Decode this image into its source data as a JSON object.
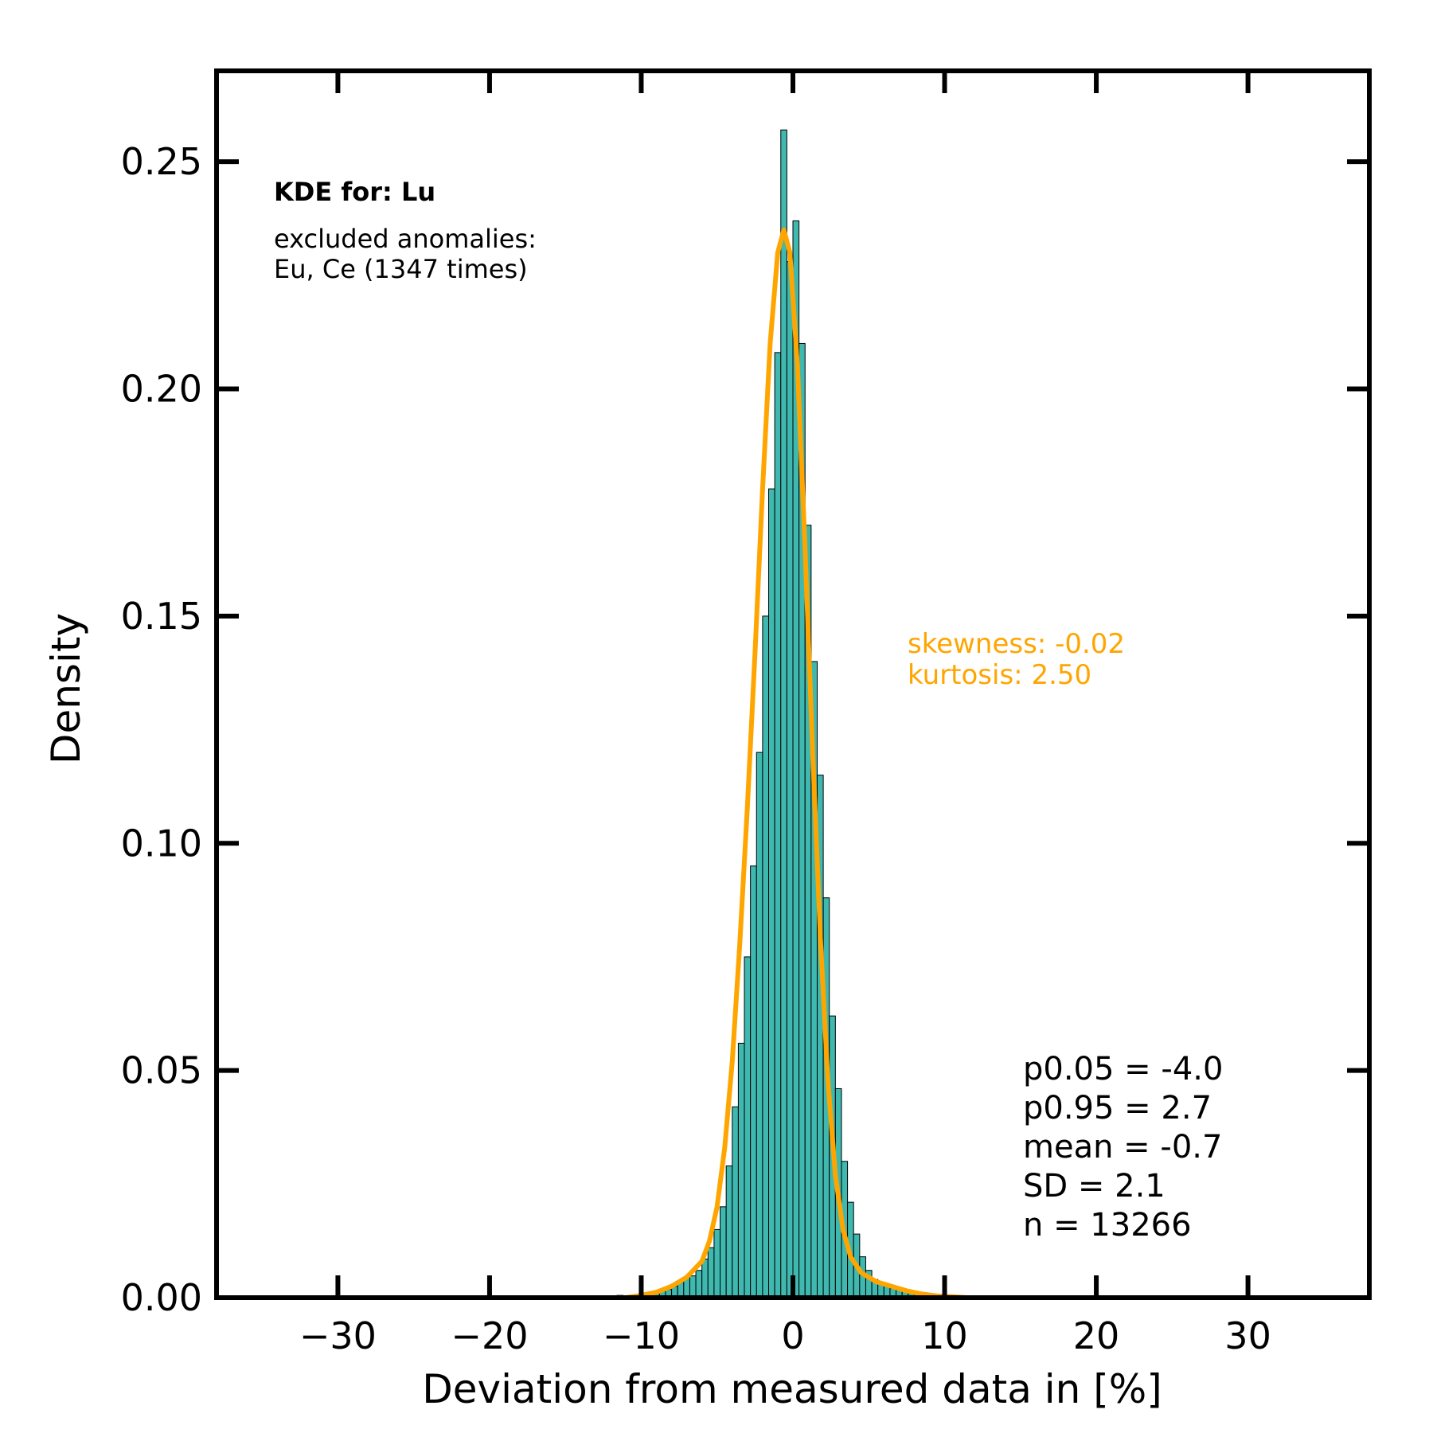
{
  "chart_data": {
    "type": "bar",
    "title": "",
    "xlabel": "Deviation from measured data in [%]",
    "ylabel": "Density",
    "xlim": [
      -38,
      38
    ],
    "ylim": [
      0,
      0.27
    ],
    "xticks": [
      -30,
      -20,
      -10,
      0,
      10,
      20,
      30
    ],
    "xtick_labels": [
      "−30",
      "−20",
      "−10",
      "0",
      "10",
      "20",
      "30"
    ],
    "yticks": [
      0,
      0.05,
      0.1,
      0.15,
      0.2,
      0.25
    ],
    "ytick_labels": [
      "0.00",
      "0.05",
      "0.10",
      "0.15",
      "0.20",
      "0.25"
    ],
    "grid": false,
    "histogram": {
      "bin_width": 0.4,
      "color": "#3fb8af",
      "edge_color": "#000000",
      "bins": [
        [
          -11.6,
          0.0005
        ],
        [
          -11.2,
          0.0004
        ],
        [
          -10.8,
          0.0003
        ],
        [
          -10.4,
          0.0006
        ],
        [
          -10.0,
          0.0008
        ],
        [
          -9.6,
          0.001
        ],
        [
          -9.2,
          0.0011
        ],
        [
          -8.8,
          0.0015
        ],
        [
          -8.4,
          0.0018
        ],
        [
          -8.0,
          0.0025
        ],
        [
          -7.6,
          0.0035
        ],
        [
          -7.2,
          0.0045
        ],
        [
          -6.8,
          0.0048
        ],
        [
          -6.4,
          0.006
        ],
        [
          -6.0,
          0.0085
        ],
        [
          -5.6,
          0.011
        ],
        [
          -5.2,
          0.015
        ],
        [
          -4.8,
          0.02
        ],
        [
          -4.4,
          0.029
        ],
        [
          -4.0,
          0.042
        ],
        [
          -3.6,
          0.056
        ],
        [
          -3.2,
          0.075
        ],
        [
          -2.8,
          0.095
        ],
        [
          -2.4,
          0.12
        ],
        [
          -2.0,
          0.15
        ],
        [
          -1.6,
          0.178
        ],
        [
          -1.2,
          0.208
        ],
        [
          -0.8,
          0.257
        ],
        [
          -0.4,
          0.228
        ],
        [
          0.0,
          0.237
        ],
        [
          0.4,
          0.21
        ],
        [
          0.8,
          0.17
        ],
        [
          1.2,
          0.14
        ],
        [
          1.6,
          0.115
        ],
        [
          2.0,
          0.088
        ],
        [
          2.4,
          0.062
        ],
        [
          2.8,
          0.046
        ],
        [
          3.2,
          0.03
        ],
        [
          3.6,
          0.021
        ],
        [
          4.0,
          0.014
        ],
        [
          4.4,
          0.009
        ],
        [
          4.8,
          0.006
        ],
        [
          5.2,
          0.004
        ],
        [
          5.6,
          0.003
        ],
        [
          6.0,
          0.0025
        ],
        [
          6.4,
          0.002
        ],
        [
          6.8,
          0.0018
        ],
        [
          7.2,
          0.0015
        ],
        [
          7.6,
          0.0012
        ],
        [
          8.0,
          0.0009
        ],
        [
          8.4,
          0.0007
        ],
        [
          8.8,
          0.0005
        ],
        [
          9.2,
          0.0004
        ],
        [
          9.6,
          0.0003
        ],
        [
          10.0,
          0.0003
        ],
        [
          10.4,
          0.0002
        ],
        [
          10.8,
          0.0002
        ],
        [
          11.2,
          0.0001
        ]
      ]
    },
    "kde": {
      "color": "#ffa500",
      "points": [
        [
          -11.0,
          0.0
        ],
        [
          -10.0,
          0.0005
        ],
        [
          -9.0,
          0.0012
        ],
        [
          -8.0,
          0.0025
        ],
        [
          -7.0,
          0.0045
        ],
        [
          -6.0,
          0.008
        ],
        [
          -5.5,
          0.0125
        ],
        [
          -5.0,
          0.02
        ],
        [
          -4.5,
          0.033
        ],
        [
          -4.0,
          0.052
        ],
        [
          -3.5,
          0.078
        ],
        [
          -3.0,
          0.108
        ],
        [
          -2.5,
          0.142
        ],
        [
          -2.0,
          0.178
        ],
        [
          -1.5,
          0.21
        ],
        [
          -1.0,
          0.23
        ],
        [
          -0.6,
          0.235
        ],
        [
          -0.2,
          0.23
        ],
        [
          0.3,
          0.205
        ],
        [
          0.8,
          0.165
        ],
        [
          1.3,
          0.12
        ],
        [
          1.8,
          0.08
        ],
        [
          2.3,
          0.048
        ],
        [
          2.8,
          0.027
        ],
        [
          3.3,
          0.015
        ],
        [
          3.8,
          0.009
        ],
        [
          4.5,
          0.0055
        ],
        [
          5.5,
          0.0035
        ],
        [
          6.5,
          0.0025
        ],
        [
          7.5,
          0.0015
        ],
        [
          8.5,
          0.0008
        ],
        [
          9.5,
          0.0004
        ],
        [
          10.5,
          0.0002
        ],
        [
          11.5,
          0.0
        ]
      ]
    },
    "annotations": {
      "kde_title": "KDE for: Lu",
      "excluded_line1": "excluded anomalies:",
      "excluded_line2": "Eu, Ce (1347 times)",
      "skewness": "skewness: -0.02",
      "kurtosis": "kurtosis: 2.50",
      "p005": "p0.05 = -4.0",
      "p095": "p0.95 = 2.7",
      "mean": "mean = -0.7",
      "sd": "SD = 2.1",
      "n": "n = 13266"
    }
  }
}
